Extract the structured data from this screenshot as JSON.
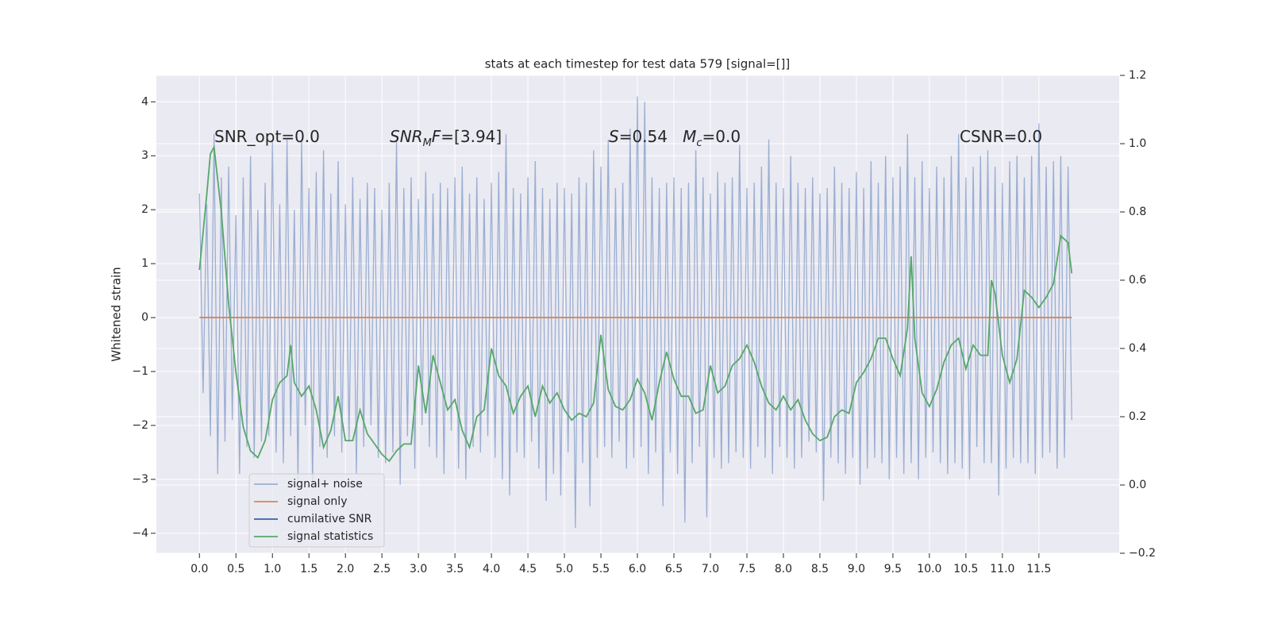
{
  "chart_data": {
    "type": "line",
    "title": "stats at each timestep for test data 579 [signal=[]]",
    "ylabel": "Whitened strain",
    "xlim": [
      -0.59,
      12.6
    ],
    "ylim": [
      -4.37,
      4.49
    ],
    "y2lim": [
      -0.2,
      1.2
    ],
    "xticks": [
      {
        "value": 0,
        "label": "0.0"
      },
      0.5,
      {
        "value": 1,
        "label": "1.0"
      },
      1.5,
      {
        "value": 2,
        "label": "2.0"
      },
      2.5,
      {
        "value": 3,
        "label": "3.0"
      },
      3.5,
      {
        "value": 4,
        "label": "4.0"
      },
      4.5,
      {
        "value": 5,
        "label": "5.0"
      },
      5.5,
      {
        "value": 6,
        "label": "6.0"
      },
      6.5,
      {
        "value": 7,
        "label": "7.0"
      },
      7.5,
      {
        "value": 8,
        "label": "8.0"
      },
      8.5,
      {
        "value": 9,
        "label": "9.0"
      },
      9.5,
      {
        "value": 10,
        "label": "10.0"
      },
      10.5,
      {
        "value": 11,
        "label": "11.0"
      },
      11.5
    ],
    "yticks": [
      {
        "value": -4,
        "label": "−4"
      },
      {
        "value": -3,
        "label": "−3"
      },
      {
        "value": -2,
        "label": "−2"
      },
      {
        "value": -1,
        "label": "−1"
      },
      0,
      1,
      2,
      3,
      4
    ],
    "y2ticks": [
      {
        "value": -0.2,
        "label": "−0.2"
      },
      {
        "value": 0,
        "label": "0.0"
      },
      0.2,
      0.4,
      0.6,
      0.8,
      {
        "value": 1,
        "label": "1.0"
      },
      1.2
    ],
    "grid": true,
    "legend": "lower left",
    "annotations": [
      [
        {
          "text": "SNR_opt=0.0"
        }
      ],
      [
        {
          "text": "SNR",
          "italic": true
        },
        {
          "text": "M",
          "italic": true,
          "sub": true
        },
        {
          "text": "F",
          "italic": true
        },
        {
          "text": "=[3.94]"
        }
      ],
      [
        {
          "text": "S",
          "italic": true
        },
        {
          "text": "=0.54   "
        },
        {
          "text": "M",
          "italic": true
        },
        {
          "text": "c",
          "italic": true,
          "sub": true
        },
        {
          "text": "=0.0"
        }
      ],
      [
        {
          "text": "CSNR=0.0"
        }
      ]
    ],
    "series": [
      {
        "name": "signal+ noise",
        "color": "#4c72b0",
        "alpha": 0.5,
        "x": [
          0,
          0.05,
          0.1,
          0.15,
          0.2,
          0.25,
          0.3,
          0.35,
          0.4,
          0.45,
          0.5,
          0.55,
          0.6,
          0.65,
          0.7,
          0.75,
          0.8,
          0.85,
          0.9,
          0.95,
          1,
          1.05,
          1.1,
          1.15,
          1.2,
          1.25,
          1.3,
          1.35,
          1.4,
          1.45,
          1.5,
          1.55,
          1.6,
          1.65,
          1.7,
          1.75,
          1.8,
          1.85,
          1.9,
          1.95,
          2,
          2.05,
          2.1,
          2.15,
          2.2,
          2.25,
          2.3,
          2.35,
          2.4,
          2.45,
          2.5,
          2.55,
          2.6,
          2.65,
          2.7,
          2.75,
          2.8,
          2.85,
          2.9,
          2.95,
          3,
          3.05,
          3.1,
          3.15,
          3.2,
          3.25,
          3.3,
          3.35,
          3.4,
          3.45,
          3.5,
          3.55,
          3.6,
          3.65,
          3.7,
          3.75,
          3.8,
          3.85,
          3.9,
          3.95,
          4,
          4.05,
          4.1,
          4.15,
          4.2,
          4.25,
          4.3,
          4.35,
          4.4,
          4.45,
          4.5,
          4.55,
          4.6,
          4.65,
          4.7,
          4.75,
          4.8,
          4.85,
          4.9,
          4.95,
          5,
          5.05,
          5.1,
          5.15,
          5.2,
          5.25,
          5.3,
          5.35,
          5.4,
          5.45,
          5.5,
          5.55,
          5.6,
          5.65,
          5.7,
          5.75,
          5.8,
          5.85,
          5.9,
          5.95,
          6,
          6.05,
          6.1,
          6.15,
          6.2,
          6.25,
          6.3,
          6.35,
          6.4,
          6.45,
          6.5,
          6.55,
          6.6,
          6.65,
          6.7,
          6.75,
          6.8,
          6.85,
          6.9,
          6.95,
          7,
          7.05,
          7.1,
          7.15,
          7.2,
          7.25,
          7.3,
          7.35,
          7.4,
          7.45,
          7.5,
          7.55,
          7.6,
          7.65,
          7.7,
          7.75,
          7.8,
          7.85,
          7.9,
          7.95,
          8,
          8.05,
          8.1,
          8.15,
          8.2,
          8.25,
          8.3,
          8.35,
          8.4,
          8.45,
          8.5,
          8.55,
          8.6,
          8.65,
          8.7,
          8.75,
          8.8,
          8.85,
          8.9,
          8.95,
          9,
          9.05,
          9.1,
          9.15,
          9.2,
          9.25,
          9.3,
          9.35,
          9.4,
          9.45,
          9.5,
          9.55,
          9.6,
          9.65,
          9.7,
          9.75,
          9.8,
          9.85,
          9.9,
          9.95,
          10,
          10.05,
          10.1,
          10.15,
          10.2,
          10.25,
          10.3,
          10.35,
          10.4,
          10.45,
          10.5,
          10.55,
          10.6,
          10.65,
          10.7,
          10.75,
          10.8,
          10.85,
          10.9,
          10.95,
          11,
          11.05,
          11.1,
          11.15,
          11.2,
          11.25,
          11.3,
          11.35,
          11.4,
          11.45,
          11.5,
          11.55,
          11.6,
          11.65,
          11.7,
          11.75,
          11.8,
          11.85,
          11.9,
          11.95
        ],
        "values": [
          2.3,
          -1.4,
          2.1,
          -2.2,
          3.4,
          -2.9,
          2.6,
          -2.3,
          2.8,
          -1.9,
          1.9,
          -2.9,
          2.6,
          -2.4,
          3.0,
          -2.6,
          2.0,
          -2.3,
          2.5,
          -2.2,
          3.3,
          -2.5,
          2.1,
          -2.7,
          3.3,
          -2.2,
          2.0,
          -3.0,
          3.3,
          -2.0,
          2.4,
          -3.1,
          2.7,
          -2.4,
          3.1,
          -2.6,
          2.3,
          -2.2,
          2.9,
          -2.5,
          2.1,
          -2.3,
          2.6,
          -2.9,
          2.2,
          -2.4,
          2.5,
          -2.0,
          2.4,
          -2.6,
          2.0,
          -2.7,
          2.5,
          -2.5,
          3.3,
          -3.1,
          2.4,
          -2.2,
          2.6,
          -2.8,
          2.2,
          -2.0,
          2.7,
          -2.4,
          2.3,
          -2.6,
          2.5,
          -2.9,
          2.4,
          -2.1,
          2.6,
          -2.8,
          2.8,
          -3.0,
          2.3,
          -2.4,
          2.6,
          -2.5,
          2.2,
          -2.2,
          2.5,
          -2.6,
          2.7,
          -3.0,
          3.4,
          -3.3,
          2.4,
          -2.5,
          2.3,
          -2.6,
          2.6,
          -2.3,
          2.9,
          -2.8,
          2.4,
          -3.4,
          2.2,
          -2.9,
          2.5,
          -3.3,
          2.4,
          -2.5,
          2.3,
          -3.9,
          2.6,
          -2.7,
          2.5,
          -3.5,
          3.1,
          -2.6,
          2.8,
          -2.4,
          3.3,
          -2.6,
          2.4,
          -2.3,
          2.5,
          -2.8,
          3.5,
          -2.6,
          4.1,
          -2.4,
          4.0,
          -2.9,
          2.6,
          -2.5,
          2.4,
          -3.5,
          2.5,
          -2.5,
          2.6,
          -2.9,
          2.4,
          -3.8,
          2.5,
          -2.7,
          3.1,
          -2.4,
          2.6,
          -3.7,
          2.3,
          -2.6,
          2.7,
          -2.8,
          2.5,
          -2.7,
          2.6,
          -2.5,
          3.2,
          -2.6,
          2.4,
          -2.8,
          2.5,
          -2.4,
          2.8,
          -2.6,
          3.3,
          -2.9,
          2.5,
          -2.4,
          2.4,
          -2.6,
          3.0,
          -2.8,
          2.5,
          -2.6,
          2.4,
          -2.3,
          2.6,
          -2.5,
          2.3,
          -3.4,
          2.4,
          -2.6,
          2.8,
          -2.7,
          2.5,
          -2.9,
          2.4,
          -2.6,
          2.7,
          -3.1,
          2.4,
          -2.8,
          2.9,
          -2.6,
          2.5,
          -2.7,
          3.0,
          -3.0,
          2.6,
          -2.6,
          2.8,
          -2.9,
          3.4,
          -2.7,
          2.6,
          -3.0,
          2.9,
          -2.6,
          2.4,
          -2.5,
          2.8,
          -2.7,
          2.6,
          -2.9,
          3.0,
          -2.7,
          3.4,
          -2.8,
          2.6,
          -3.0,
          2.8,
          -2.4,
          3.0,
          -2.7,
          3.1,
          -2.7,
          2.8,
          -3.3,
          2.5,
          -2.8,
          2.9,
          -2.6,
          3.0,
          -2.7,
          2.6,
          -2.7,
          3.0,
          -2.9,
          3.6,
          -2.6,
          2.8,
          -2.5,
          2.9,
          -2.8,
          3.0,
          -2.6,
          2.8,
          -1.9
        ]
      },
      {
        "name": "signal only",
        "color": "#dd8452",
        "x": [
          0,
          11.95
        ],
        "values": [
          0,
          0
        ]
      },
      {
        "name": "cumilative SNR",
        "color": "#3c5fa8",
        "x": [],
        "values": []
      },
      {
        "name": "signal statistics",
        "color": "#55a868",
        "axis": "y2",
        "x": [
          0,
          0.1,
          0.15,
          0.2,
          0.3,
          0.4,
          0.5,
          0.6,
          0.7,
          0.8,
          0.9,
          1,
          1.1,
          1.2,
          1.25,
          1.3,
          1.4,
          1.5,
          1.6,
          1.7,
          1.8,
          1.9,
          2,
          2.1,
          2.2,
          2.3,
          2.4,
          2.5,
          2.6,
          2.7,
          2.8,
          2.9,
          3,
          3.1,
          3.2,
          3.3,
          3.4,
          3.5,
          3.6,
          3.7,
          3.8,
          3.9,
          4,
          4.1,
          4.2,
          4.3,
          4.4,
          4.5,
          4.6,
          4.7,
          4.8,
          4.9,
          5,
          5.1,
          5.2,
          5.3,
          5.4,
          5.5,
          5.6,
          5.7,
          5.8,
          5.9,
          6,
          6.1,
          6.2,
          6.3,
          6.4,
          6.5,
          6.6,
          6.7,
          6.8,
          6.9,
          7,
          7.1,
          7.2,
          7.3,
          7.4,
          7.5,
          7.6,
          7.7,
          7.8,
          7.9,
          8,
          8.1,
          8.2,
          8.3,
          8.4,
          8.5,
          8.6,
          8.7,
          8.8,
          8.9,
          9,
          9.1,
          9.2,
          9.3,
          9.4,
          9.5,
          9.6,
          9.7,
          9.75,
          9.8,
          9.9,
          10,
          10.1,
          10.2,
          10.3,
          10.4,
          10.5,
          10.6,
          10.7,
          10.8,
          10.85,
          10.9,
          11,
          11.1,
          11.2,
          11.3,
          11.4,
          11.5,
          11.6,
          11.7,
          11.8,
          11.9,
          11.95
        ],
        "values": [
          0.63,
          0.85,
          0.97,
          0.99,
          0.8,
          0.53,
          0.33,
          0.17,
          0.1,
          0.08,
          0.13,
          0.25,
          0.3,
          0.32,
          0.41,
          0.3,
          0.26,
          0.29,
          0.22,
          0.11,
          0.16,
          0.26,
          0.13,
          0.13,
          0.22,
          0.15,
          0.12,
          0.09,
          0.07,
          0.1,
          0.12,
          0.12,
          0.35,
          0.21,
          0.38,
          0.3,
          0.22,
          0.25,
          0.16,
          0.11,
          0.2,
          0.22,
          0.4,
          0.32,
          0.29,
          0.21,
          0.26,
          0.29,
          0.2,
          0.29,
          0.24,
          0.27,
          0.22,
          0.19,
          0.21,
          0.2,
          0.24,
          0.44,
          0.28,
          0.23,
          0.22,
          0.25,
          0.31,
          0.27,
          0.19,
          0.3,
          0.39,
          0.31,
          0.26,
          0.26,
          0.21,
          0.22,
          0.35,
          0.27,
          0.29,
          0.35,
          0.37,
          0.41,
          0.36,
          0.29,
          0.24,
          0.22,
          0.26,
          0.22,
          0.25,
          0.19,
          0.15,
          0.13,
          0.14,
          0.2,
          0.22,
          0.21,
          0.3,
          0.33,
          0.37,
          0.43,
          0.43,
          0.37,
          0.32,
          0.46,
          0.67,
          0.43,
          0.27,
          0.23,
          0.28,
          0.36,
          0.41,
          0.43,
          0.34,
          0.41,
          0.38,
          0.38,
          0.6,
          0.56,
          0.38,
          0.3,
          0.37,
          0.57,
          0.55,
          0.52,
          0.55,
          0.59,
          0.73,
          0.71,
          0.62
        ]
      }
    ]
  }
}
